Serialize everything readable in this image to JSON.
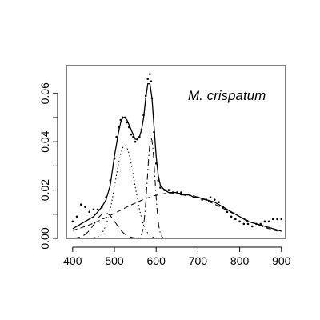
{
  "chart_data": {
    "type": "scatter",
    "title": "",
    "xlabel": "",
    "ylabel": "",
    "annotation": "M. crispatum",
    "xlim": [
      385,
      910
    ],
    "ylim": [
      0,
      0.0715
    ],
    "x_ticks": [
      400,
      500,
      600,
      700,
      800,
      900
    ],
    "x_tick_labels": [
      "400",
      "500",
      "600",
      "700",
      "800",
      "900"
    ],
    "y_ticks": [
      0.0,
      0.01,
      0.02,
      0.03,
      0.04,
      0.05,
      0.06
    ],
    "y_tick_labels": [
      "0.00",
      "",
      "0.02",
      "",
      "0.04",
      "",
      "0.06"
    ],
    "grid": false,
    "legend": "none",
    "observed_points": {
      "x": [
        400,
        410,
        420,
        430,
        440,
        450,
        460,
        470,
        480,
        490,
        500,
        505,
        510,
        515,
        520,
        525,
        530,
        535,
        540,
        545,
        550,
        555,
        560,
        565,
        570,
        575,
        580,
        585,
        588,
        590,
        595,
        600,
        605,
        610,
        620,
        630,
        640,
        650,
        660,
        670,
        680,
        690,
        700,
        710,
        720,
        730,
        740,
        750,
        760,
        770,
        780,
        790,
        800,
        810,
        820,
        830,
        840,
        850,
        860,
        870,
        880,
        890,
        900
      ],
      "y": [
        0.007,
        0.009,
        0.014,
        0.013,
        0.011,
        0.012,
        0.012,
        0.013,
        0.017,
        0.024,
        0.033,
        0.042,
        0.046,
        0.049,
        0.05,
        0.05,
        0.048,
        0.046,
        0.043,
        0.042,
        0.04,
        0.041,
        0.042,
        0.045,
        0.051,
        0.059,
        0.066,
        0.068,
        0.065,
        0.058,
        0.044,
        0.031,
        0.024,
        0.021,
        0.02,
        0.02,
        0.019,
        0.019,
        0.019,
        0.018,
        0.018,
        0.017,
        0.017,
        0.016,
        0.016,
        0.017,
        0.016,
        0.015,
        0.013,
        0.011,
        0.009,
        0.008,
        0.007,
        0.006,
        0.006,
        0.005,
        0.006,
        0.006,
        0.007,
        0.007,
        0.008,
        0.008,
        0.008
      ]
    },
    "fitted_curve": {
      "x": [
        400,
        410,
        420,
        430,
        440,
        450,
        460,
        470,
        480,
        490,
        500,
        505,
        510,
        515,
        520,
        525,
        530,
        535,
        540,
        545,
        550,
        555,
        560,
        565,
        570,
        575,
        580,
        585,
        590,
        595,
        600,
        605,
        610,
        620,
        630,
        640,
        650,
        660,
        670,
        680,
        690,
        700,
        720,
        740,
        760,
        780,
        800,
        820,
        840,
        860,
        880,
        900
      ],
      "y": [
        0.004,
        0.005,
        0.006,
        0.007,
        0.008,
        0.009,
        0.011,
        0.013,
        0.016,
        0.022,
        0.034,
        0.039,
        0.044,
        0.048,
        0.05,
        0.05,
        0.049,
        0.047,
        0.045,
        0.043,
        0.041,
        0.041,
        0.042,
        0.045,
        0.05,
        0.058,
        0.064,
        0.064,
        0.058,
        0.046,
        0.034,
        0.026,
        0.022,
        0.02,
        0.019,
        0.019,
        0.019,
        0.018,
        0.018,
        0.018,
        0.017,
        0.017,
        0.016,
        0.015,
        0.013,
        0.011,
        0.009,
        0.007,
        0.006,
        0.005,
        0.004,
        0.003
      ]
    },
    "components": [
      {
        "style": "longdash",
        "amplitude": 0.0105,
        "mean": 478,
        "sd": 25
      },
      {
        "style": "dotted",
        "amplitude": 0.0384,
        "mean": 525,
        "sd": 23
      },
      {
        "style": "dashdot",
        "amplitude": 0.0415,
        "mean": 588,
        "sd": 9
      },
      {
        "style": "dashed",
        "amplitude": 0.0188,
        "mean": 642,
        "sd": 130
      }
    ]
  }
}
